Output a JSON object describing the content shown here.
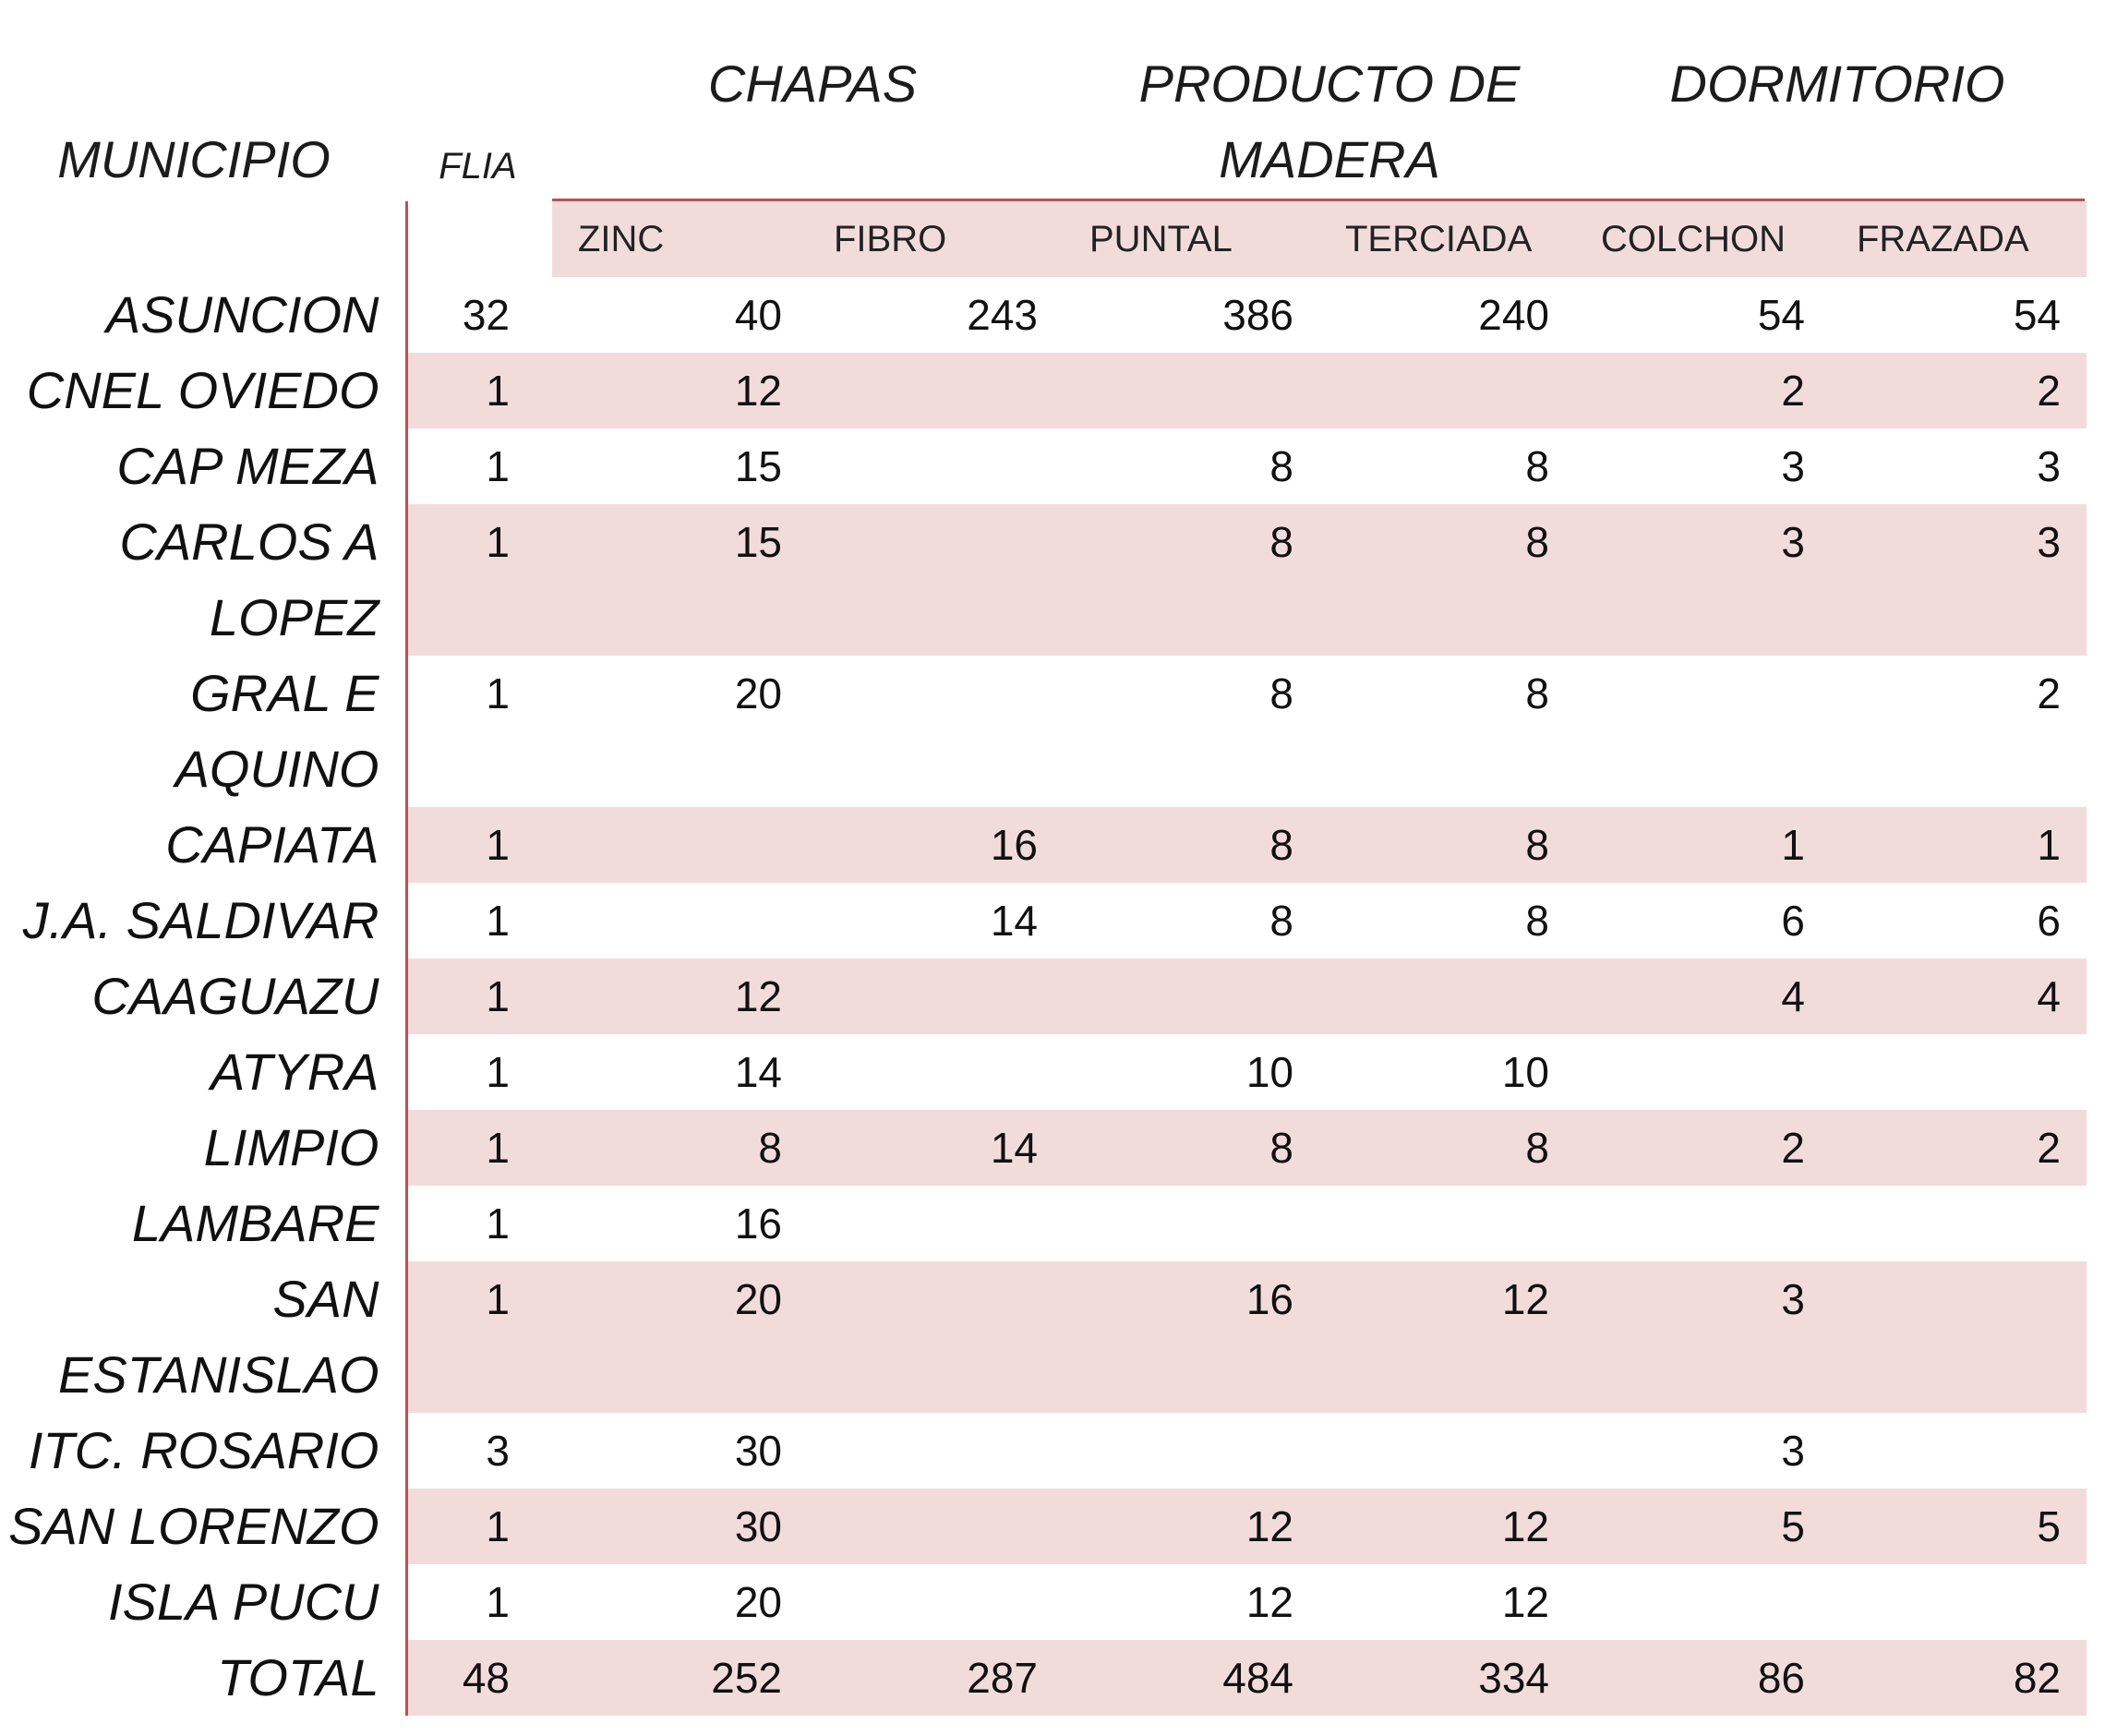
{
  "header": {
    "municipio": "MUNICIPIO",
    "flia": "FLIA",
    "groups": {
      "chapas": "CHAPAS",
      "producto_l1": "PRODUCTO DE",
      "producto_l2": "MADERA",
      "dormitorio": "DORMITORIO"
    },
    "subcolumns": [
      "ZINC",
      "FIBRO",
      "PUNTAL",
      "TERCIADA",
      "COLCHON",
      "FRAZADA"
    ]
  },
  "rows": [
    {
      "municipio": "ASUNCION",
      "flia": "32",
      "zinc": "40",
      "fibro": "243",
      "puntal": "386",
      "terciada": "240",
      "colchon": "54",
      "frazada": "54"
    },
    {
      "municipio": "CNEL OVIEDO",
      "flia": "1",
      "zinc": "12",
      "fibro": "",
      "puntal": "",
      "terciada": "",
      "colchon": "2",
      "frazada": "2"
    },
    {
      "municipio": "CAP MEZA",
      "flia": "1",
      "zinc": "15",
      "fibro": "",
      "puntal": "8",
      "terciada": "8",
      "colchon": "3",
      "frazada": "3"
    },
    {
      "municipio": "CARLOS A LOPEZ",
      "flia": "1",
      "zinc": "15",
      "fibro": "",
      "puntal": "8",
      "terciada": "8",
      "colchon": "3",
      "frazada": "3"
    },
    {
      "municipio": "GRAL E AQUINO",
      "flia": "1",
      "zinc": "20",
      "fibro": "",
      "puntal": "8",
      "terciada": "8",
      "colchon": "",
      "frazada": "2"
    },
    {
      "municipio": "CAPIATA",
      "flia": "1",
      "zinc": "",
      "fibro": "16",
      "puntal": "8",
      "terciada": "8",
      "colchon": "1",
      "frazada": "1"
    },
    {
      "municipio": "J.A. SALDIVAR",
      "flia": "1",
      "zinc": "",
      "fibro": "14",
      "puntal": "8",
      "terciada": "8",
      "colchon": "6",
      "frazada": "6"
    },
    {
      "municipio": "CAAGUAZU",
      "flia": "1",
      "zinc": "12",
      "fibro": "",
      "puntal": "",
      "terciada": "",
      "colchon": "4",
      "frazada": "4"
    },
    {
      "municipio": "ATYRA",
      "flia": "1",
      "zinc": "14",
      "fibro": "",
      "puntal": "10",
      "terciada": "10",
      "colchon": "",
      "frazada": ""
    },
    {
      "municipio": "LIMPIO",
      "flia": "1",
      "zinc": "8",
      "fibro": "14",
      "puntal": "8",
      "terciada": "8",
      "colchon": "2",
      "frazada": "2"
    },
    {
      "municipio": "LAMBARE",
      "flia": "1",
      "zinc": "16",
      "fibro": "",
      "puntal": "",
      "terciada": "",
      "colchon": "",
      "frazada": ""
    },
    {
      "municipio": "SAN ESTANISLAO",
      "flia": "1",
      "zinc": "20",
      "fibro": "",
      "puntal": "16",
      "terciada": "12",
      "colchon": "3",
      "frazada": ""
    },
    {
      "municipio": "ITC. ROSARIO",
      "flia": "3",
      "zinc": "30",
      "fibro": "",
      "puntal": "",
      "terciada": "",
      "colchon": "3",
      "frazada": ""
    },
    {
      "municipio": "SAN LORENZO",
      "flia": "1",
      "zinc": "30",
      "fibro": "",
      "puntal": "12",
      "terciada": "12",
      "colchon": "5",
      "frazada": "5"
    },
    {
      "municipio": "ISLA PUCU",
      "flia": "1",
      "zinc": "20",
      "fibro": "",
      "puntal": "12",
      "terciada": "12",
      "colchon": "",
      "frazada": ""
    },
    {
      "municipio": "TOTAL",
      "flia": "48",
      "zinc": "252",
      "fibro": "287",
      "puntal": "484",
      "terciada": "334",
      "colchon": "86",
      "frazada": "82"
    }
  ],
  "colors": {
    "band": "#f2dcdb",
    "rule": "#c0504d"
  }
}
